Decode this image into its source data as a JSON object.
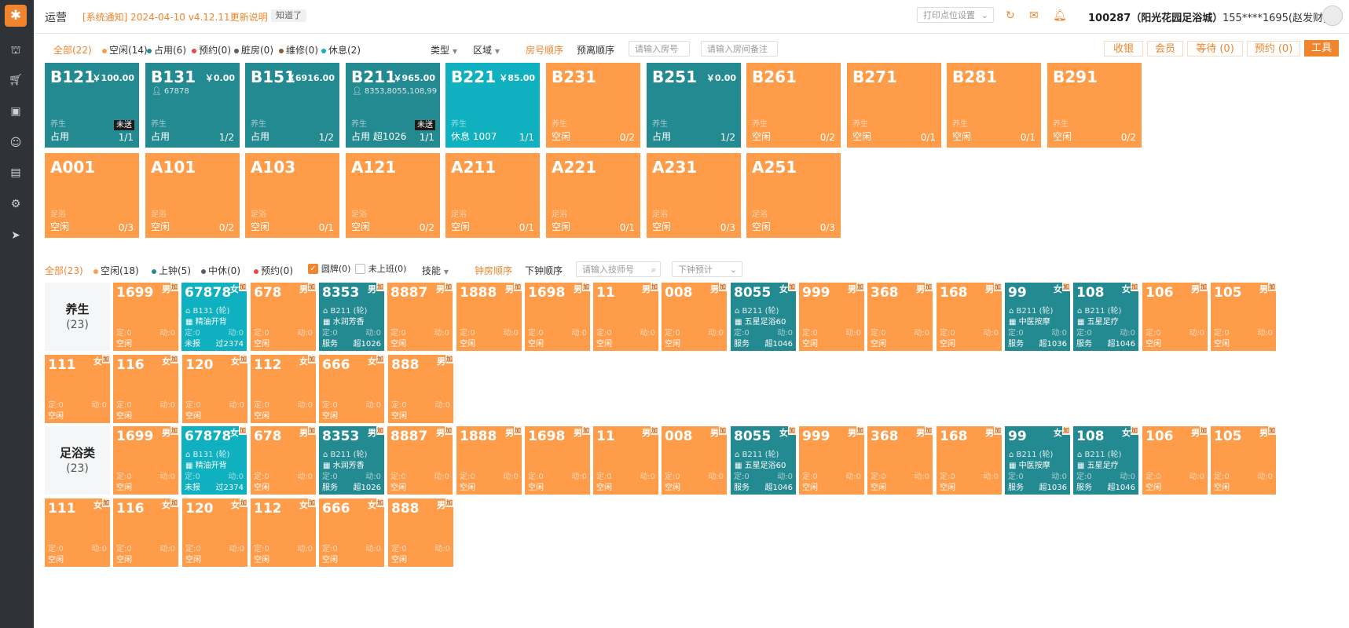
{
  "app": {
    "logo_glyph": "✱",
    "title": "运营"
  },
  "notice": {
    "text": "[系统通知] 2024-04-10 v4.12.11更新说明",
    "ack": "知道了"
  },
  "header": {
    "print_placeholder": "打印点位设置",
    "store": "100287（阳光花园足浴城）",
    "user": "155****1695(赵发财)"
  },
  "room_filters": {
    "all": "全部(22)",
    "items": [
      {
        "label": "空闲(14)",
        "color": "#ff9c4a"
      },
      {
        "label": "占用(6)",
        "color": "#238a91"
      },
      {
        "label": "预约(0)",
        "color": "#e84a4a"
      },
      {
        "label": "脏房(0)",
        "color": "#555e6b"
      },
      {
        "label": "维修(0)",
        "color": "#8a5a36"
      },
      {
        "label": "休息(2)",
        "color": "#0fb0c0"
      }
    ],
    "type": "类型",
    "area": "区域",
    "sort_room": "房号顺序",
    "sort_leave": "预离顺序",
    "room_search_placeholder": "请输入房号",
    "note_search_placeholder": "请输入房间备注"
  },
  "actions": {
    "checkout": "收银",
    "member": "会员",
    "waiting": "等待 (0)",
    "reserve": "预约 (0)",
    "tools": "工具"
  },
  "rooms": [
    {
      "no": "B121",
      "price": "￥100.00",
      "guest": "",
      "type": "养生",
      "status": "占用",
      "extra": "",
      "count": "1/1",
      "notsent": "未送",
      "color": "teal"
    },
    {
      "no": "B131",
      "price": "￥0.00",
      "guest": "67878",
      "type": "养生",
      "status": "占用",
      "extra": "",
      "count": "1/2",
      "notsent": "",
      "color": "teal"
    },
    {
      "no": "B151",
      "price": "￥6916.00",
      "guest": "",
      "type": "养生",
      "status": "占用",
      "extra": "",
      "count": "1/2",
      "notsent": "",
      "color": "teal"
    },
    {
      "no": "B211",
      "price": "￥965.00",
      "guest": "8353,8055,108,99",
      "type": "养生",
      "status": "占用",
      "extra": "超1026",
      "count": "1/1",
      "notsent": "未送",
      "color": "teal"
    },
    {
      "no": "B221",
      "price": "￥85.00",
      "guest": "",
      "type": "养生",
      "status": "休息",
      "extra": "1007",
      "count": "1/1",
      "notsent": "",
      "color": "cyan"
    },
    {
      "no": "B231",
      "price": "",
      "guest": "",
      "type": "养生",
      "status": "空闲",
      "extra": "",
      "count": "0/2",
      "notsent": "",
      "color": "orange"
    },
    {
      "no": "B251",
      "price": "￥0.00",
      "guest": "",
      "type": "养生",
      "status": "占用",
      "extra": "",
      "count": "1/2",
      "notsent": "",
      "color": "teal"
    },
    {
      "no": "B261",
      "price": "",
      "guest": "",
      "type": "养生",
      "status": "空闲",
      "extra": "",
      "count": "0/2",
      "notsent": "",
      "color": "orange"
    },
    {
      "no": "B271",
      "price": "",
      "guest": "",
      "type": "养生",
      "status": "空闲",
      "extra": "",
      "count": "0/1",
      "notsent": "",
      "color": "orange"
    },
    {
      "no": "B281",
      "price": "",
      "guest": "",
      "type": "养生",
      "status": "空闲",
      "extra": "",
      "count": "0/1",
      "notsent": "",
      "color": "orange"
    },
    {
      "no": "B291",
      "price": "",
      "guest": "",
      "type": "养生",
      "status": "空闲",
      "extra": "",
      "count": "0/2",
      "notsent": "",
      "color": "orange"
    },
    {
      "no": "A001",
      "price": "",
      "guest": "",
      "type": "足浴",
      "status": "空闲",
      "extra": "",
      "count": "0/3",
      "notsent": "",
      "color": "orange"
    },
    {
      "no": "A101",
      "price": "",
      "guest": "",
      "type": "足浴",
      "status": "空闲",
      "extra": "",
      "count": "0/2",
      "notsent": "",
      "color": "orange"
    },
    {
      "no": "A103",
      "price": "",
      "guest": "",
      "type": "足浴",
      "status": "空闲",
      "extra": "",
      "count": "0/1",
      "notsent": "",
      "color": "orange"
    },
    {
      "no": "A121",
      "price": "",
      "guest": "",
      "type": "足浴",
      "status": "空闲",
      "extra": "",
      "count": "0/2",
      "notsent": "",
      "color": "orange"
    },
    {
      "no": "A211",
      "price": "",
      "guest": "",
      "type": "足浴",
      "status": "空闲",
      "extra": "",
      "count": "0/1",
      "notsent": "",
      "color": "orange"
    },
    {
      "no": "A221",
      "price": "",
      "guest": "",
      "type": "足浴",
      "status": "空闲",
      "extra": "",
      "count": "0/1",
      "notsent": "",
      "color": "orange"
    },
    {
      "no": "A231",
      "price": "",
      "guest": "",
      "type": "足浴",
      "status": "空闲",
      "extra": "",
      "count": "0/3",
      "notsent": "",
      "color": "orange"
    },
    {
      "no": "A251",
      "price": "",
      "guest": "",
      "type": "足浴",
      "status": "空闲",
      "extra": "",
      "count": "0/3",
      "notsent": "",
      "color": "orange"
    }
  ],
  "tech_filters": {
    "all": "全部(23)",
    "items": [
      {
        "label": "空闲(18)",
        "color": "#ff9c4a"
      },
      {
        "label": "上钟(5)",
        "color": "#238a91"
      },
      {
        "label": "中休(0)",
        "color": "#555e6b"
      },
      {
        "label": "预约(0)",
        "color": "#e84a4a"
      }
    ],
    "cb_card": "圆牌(0)",
    "cb_off": "未上班(0)",
    "skill": "技能",
    "sort_clock": "钟房顺序",
    "sort_next": "下钟顺序",
    "tech_search_placeholder": "请输入技师号",
    "next_placeholder": "下钟预计"
  },
  "tech_groups": [
    {
      "name": "养生",
      "count": "(23)"
    },
    {
      "name": "足浴类",
      "count": "(23)"
    }
  ],
  "techs": [
    {
      "no": "1699",
      "gender": "男",
      "tag": "加",
      "loc": "",
      "svc": "",
      "fixed": "定:0",
      "move": "动:0",
      "status": "空闲",
      "over": "",
      "color": "orange"
    },
    {
      "no": "67878",
      "gender": "女",
      "tag": "加",
      "loc": "B131 (轮)",
      "svc": "精油开背",
      "fixed": "定:0",
      "move": "动:0",
      "status": "未报",
      "over": "过2374",
      "color": "cyan"
    },
    {
      "no": "678",
      "gender": "男",
      "tag": "加",
      "loc": "",
      "svc": "",
      "fixed": "定:0",
      "move": "动:0",
      "status": "空闲",
      "over": "",
      "color": "orange"
    },
    {
      "no": "8353",
      "gender": "男",
      "tag": "加",
      "loc": "B211 (轮)",
      "svc": "水润芳香",
      "fixed": "定:0",
      "move": "动:0",
      "status": "服务",
      "over": "超1026",
      "color": "teal"
    },
    {
      "no": "8887",
      "gender": "男",
      "tag": "加",
      "loc": "",
      "svc": "",
      "fixed": "定:0",
      "move": "动:0",
      "status": "空闲",
      "over": "",
      "color": "orange"
    },
    {
      "no": "1888",
      "gender": "男",
      "tag": "加",
      "loc": "",
      "svc": "",
      "fixed": "定:0",
      "move": "动:0",
      "status": "空闲",
      "over": "",
      "color": "orange"
    },
    {
      "no": "1698",
      "gender": "男",
      "tag": "加",
      "loc": "",
      "svc": "",
      "fixed": "定:0",
      "move": "动:0",
      "status": "空闲",
      "over": "",
      "color": "orange"
    },
    {
      "no": "11",
      "gender": "男",
      "tag": "加",
      "loc": "",
      "svc": "",
      "fixed": "定:0",
      "move": "动:0",
      "status": "空闲",
      "over": "",
      "color": "orange"
    },
    {
      "no": "008",
      "gender": "男",
      "tag": "加",
      "loc": "",
      "svc": "",
      "fixed": "定:0",
      "move": "动:0",
      "status": "空闲",
      "over": "",
      "color": "orange"
    },
    {
      "no": "8055",
      "gender": "女",
      "tag": "加",
      "loc": "B211 (轮)",
      "svc": "五星足浴60",
      "fixed": "定:0",
      "move": "动:0",
      "status": "服务",
      "over": "超1046",
      "color": "teal"
    },
    {
      "no": "999",
      "gender": "男",
      "tag": "加",
      "loc": "",
      "svc": "",
      "fixed": "定:0",
      "move": "动:0",
      "status": "空闲",
      "over": "",
      "color": "orange"
    },
    {
      "no": "368",
      "gender": "男",
      "tag": "加",
      "loc": "",
      "svc": "",
      "fixed": "定:0",
      "move": "动:0",
      "status": "空闲",
      "over": "",
      "color": "orange"
    },
    {
      "no": "168",
      "gender": "男",
      "tag": "加",
      "loc": "",
      "svc": "",
      "fixed": "定:0",
      "move": "动:0",
      "status": "空闲",
      "over": "",
      "color": "orange"
    },
    {
      "no": "99",
      "gender": "女",
      "tag": "加",
      "loc": "B211 (轮)",
      "svc": "中医按摩",
      "fixed": "定:0",
      "move": "动:0",
      "status": "服务",
      "over": "超1036",
      "color": "teal"
    },
    {
      "no": "108",
      "gender": "女",
      "tag": "加",
      "loc": "B211 (轮)",
      "svc": "五星足疗",
      "fixed": "定:0",
      "move": "动:0",
      "status": "服务",
      "over": "超1046",
      "color": "teal"
    },
    {
      "no": "106",
      "gender": "男",
      "tag": "加",
      "loc": "",
      "svc": "",
      "fixed": "定:0",
      "move": "动:0",
      "status": "空闲",
      "over": "",
      "color": "orange"
    },
    {
      "no": "105",
      "gender": "男",
      "tag": "加",
      "loc": "",
      "svc": "",
      "fixed": "定:0",
      "move": "动:0",
      "status": "空闲",
      "over": "",
      "color": "orange"
    },
    {
      "no": "111",
      "gender": "女",
      "tag": "加",
      "loc": "",
      "svc": "",
      "fixed": "定:0",
      "move": "动:0",
      "status": "空闲",
      "over": "",
      "color": "orange"
    },
    {
      "no": "116",
      "gender": "女",
      "tag": "加",
      "loc": "",
      "svc": "",
      "fixed": "定:0",
      "move": "动:0",
      "status": "空闲",
      "over": "",
      "color": "orange"
    },
    {
      "no": "120",
      "gender": "女",
      "tag": "加",
      "loc": "",
      "svc": "",
      "fixed": "定:0",
      "move": "动:0",
      "status": "空闲",
      "over": "",
      "color": "orange"
    },
    {
      "no": "112",
      "gender": "女",
      "tag": "加",
      "loc": "",
      "svc": "",
      "fixed": "定:0",
      "move": "动:0",
      "status": "空闲",
      "over": "",
      "color": "orange"
    },
    {
      "no": "666",
      "gender": "女",
      "tag": "加",
      "loc": "",
      "svc": "",
      "fixed": "定:0",
      "move": "动:0",
      "status": "空闲",
      "over": "",
      "color": "orange"
    },
    {
      "no": "888",
      "gender": "男",
      "tag": "加",
      "loc": "",
      "svc": "",
      "fixed": "定:0",
      "move": "动:0",
      "status": "空闲",
      "over": "",
      "color": "orange"
    }
  ],
  "icons": {
    "sidebar": [
      "store-icon",
      "cart-icon",
      "bag-icon",
      "user-icon",
      "card-icon",
      "settings-icon",
      "send-icon"
    ],
    "header": [
      "refresh-icon",
      "mail-icon",
      "bell-icon"
    ]
  }
}
